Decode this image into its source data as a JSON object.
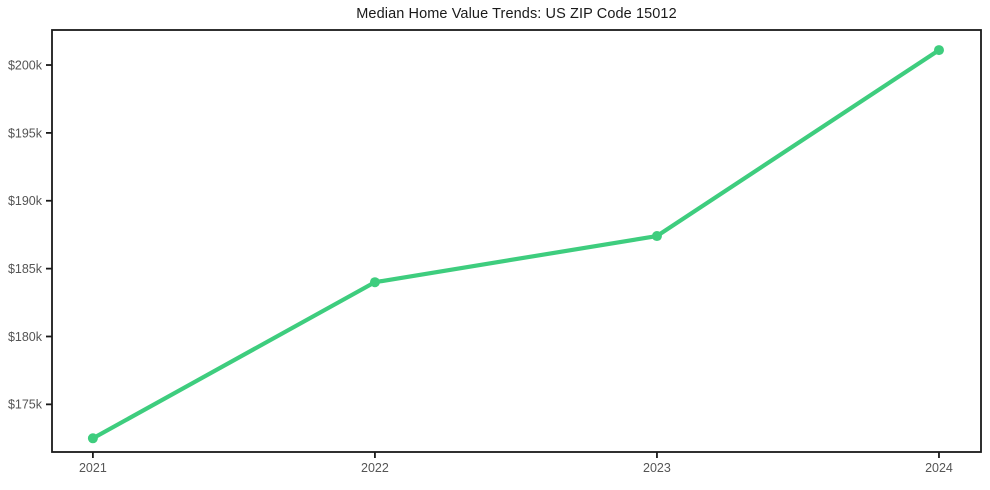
{
  "chart_data": {
    "type": "line",
    "title": "Median Home Value Trends: US ZIP Code 15012",
    "x": [
      2021,
      2022,
      2023,
      2024
    ],
    "x_tick_labels": [
      "2021",
      "2022",
      "2023",
      "2024"
    ],
    "values": [
      172500,
      184000,
      187400,
      201100
    ],
    "y_ticks": [
      {
        "value": 175000,
        "label": "$175k"
      },
      {
        "value": 180000,
        "label": "$180k"
      },
      {
        "value": 185000,
        "label": "$185k"
      },
      {
        "value": 190000,
        "label": "$190k"
      },
      {
        "value": 195000,
        "label": "$195k"
      },
      {
        "value": 200000,
        "label": "$200k"
      }
    ],
    "xlim": [
      2020.855,
      2024.149
    ],
    "ylim": [
      171490,
      202580
    ],
    "grid": false,
    "legend": "none",
    "xlabel": "",
    "ylabel": "",
    "colors": {
      "line": "#3ecd7e",
      "marker": "#3ecd7e",
      "axis": "#1a1a1a",
      "tick_label": "#555555",
      "title": "#1a1a1a",
      "background": "#ffffff"
    }
  }
}
